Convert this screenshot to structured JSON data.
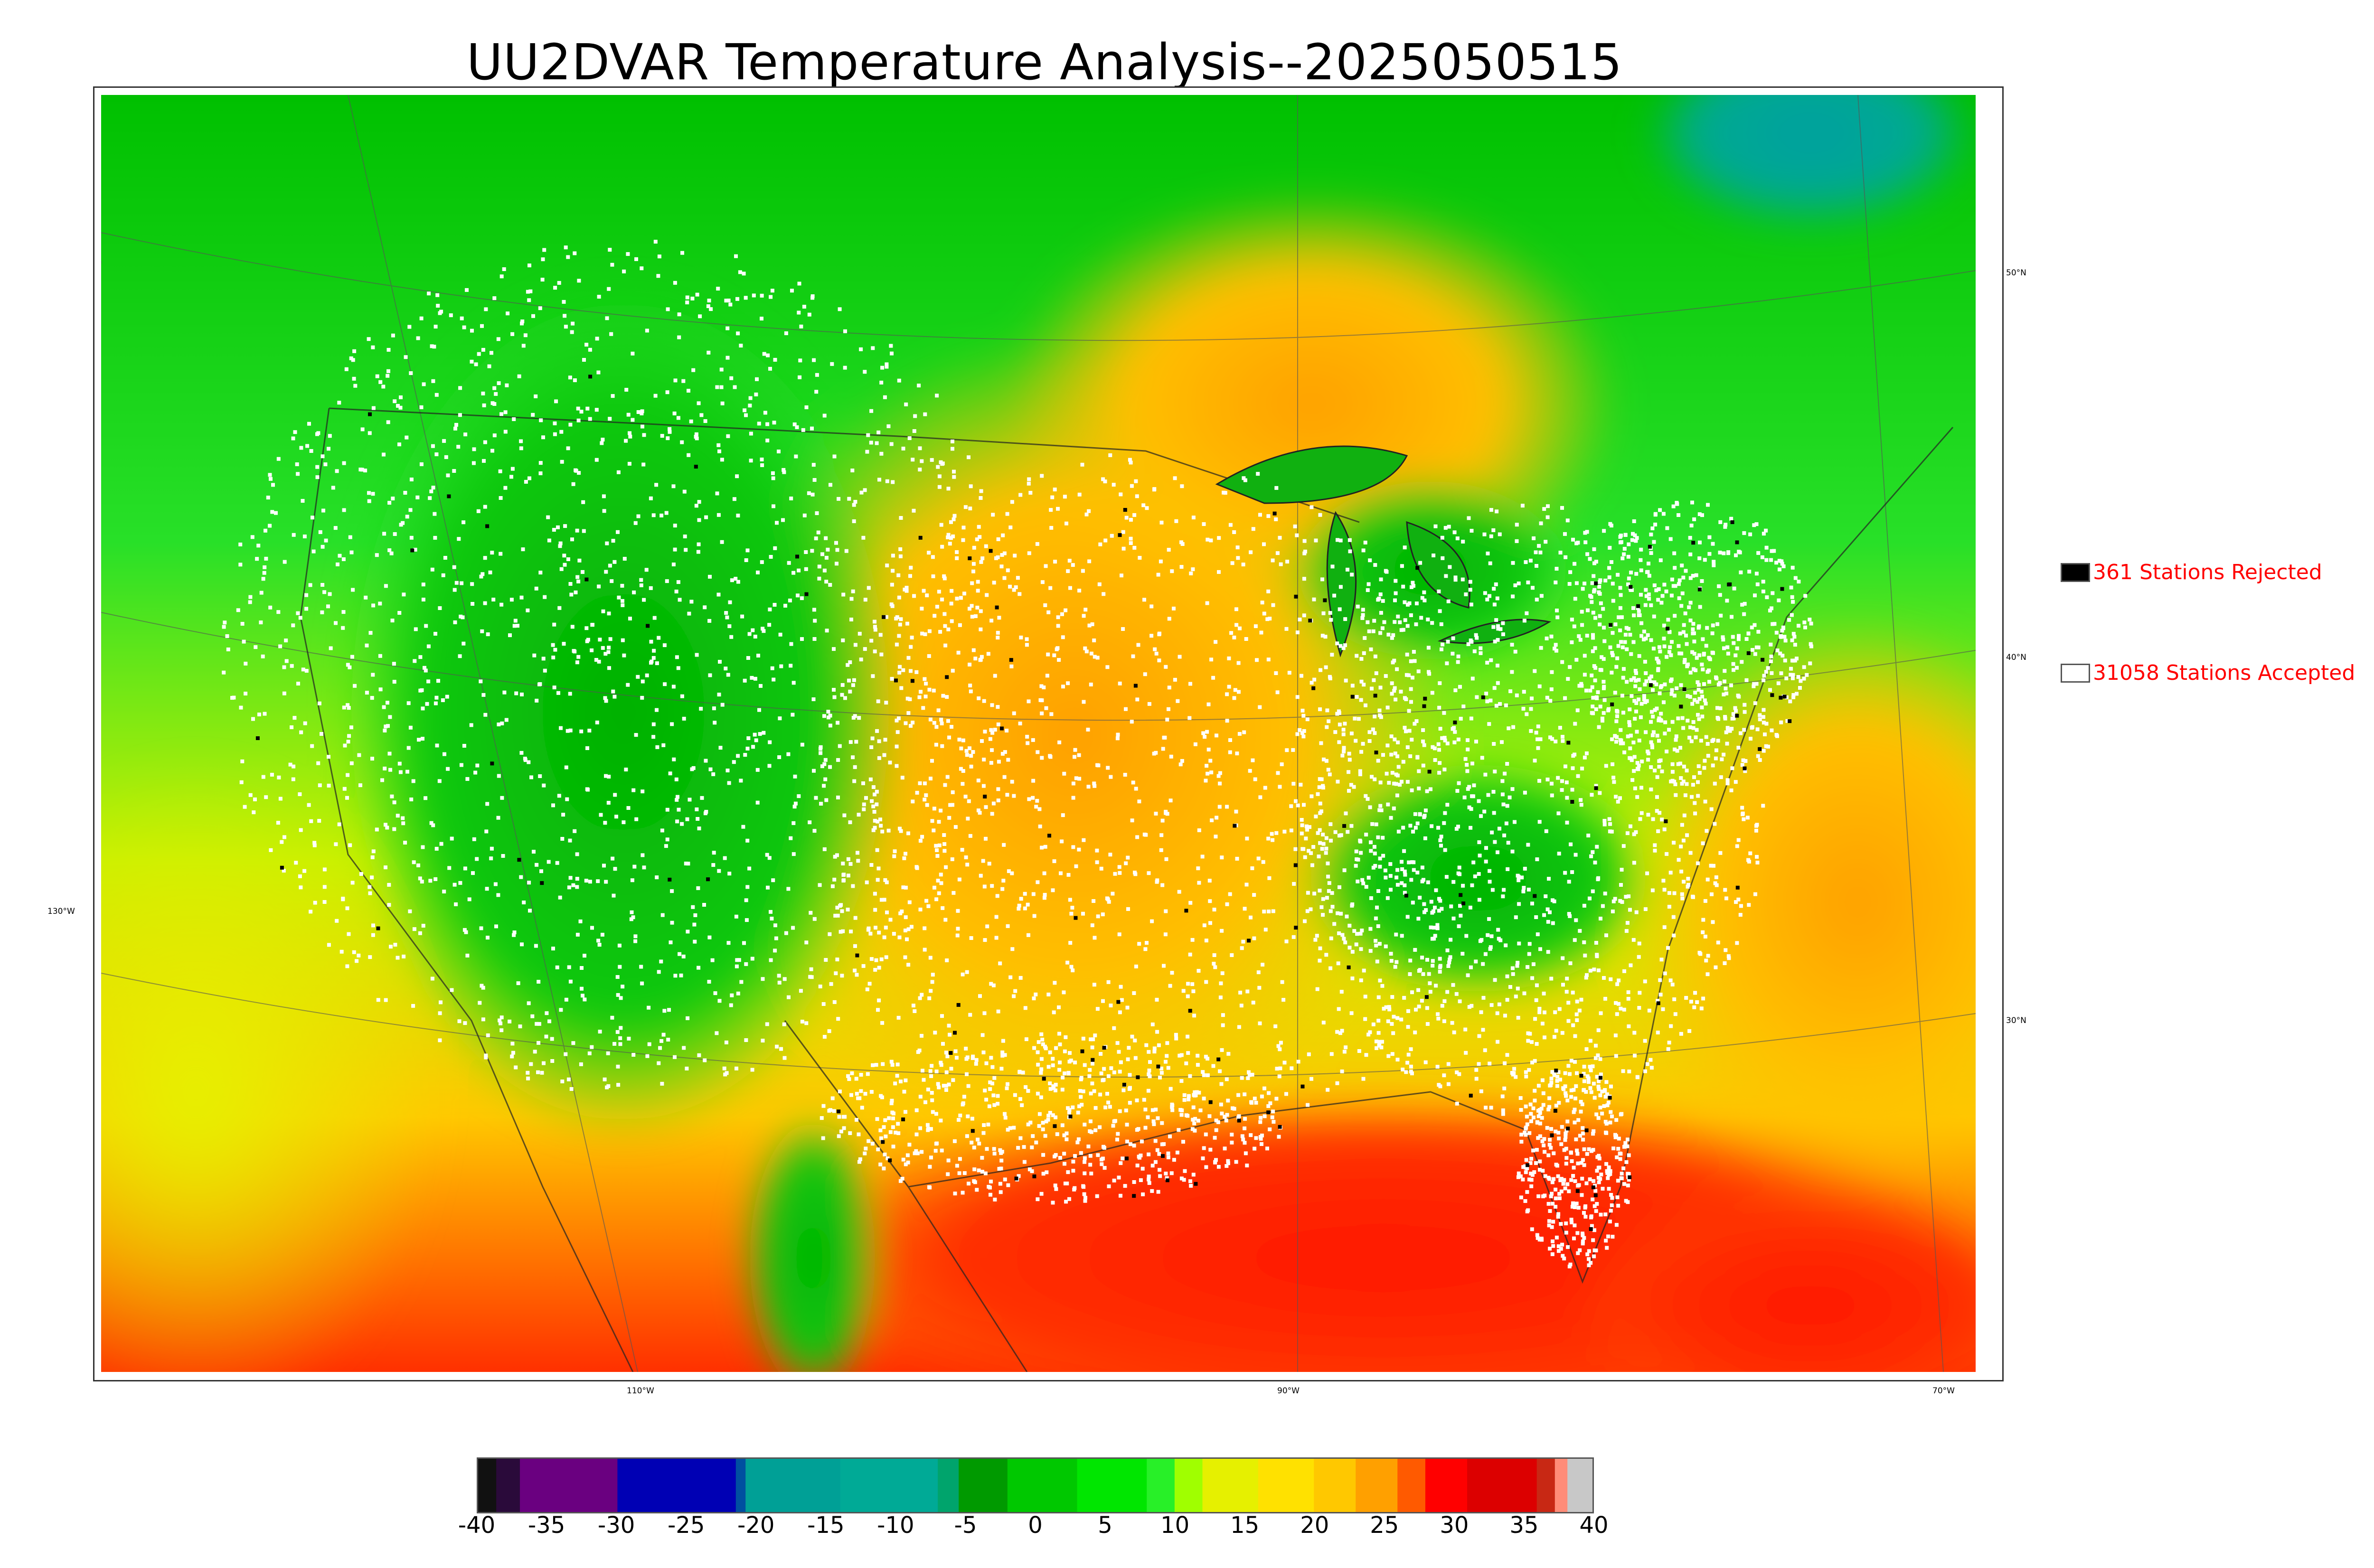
{
  "title": "UU2DVAR Temperature Analysis--2025050515",
  "map": {
    "longitude_labels": [
      {
        "text": "110°W",
        "lon": -110
      },
      {
        "text": "90°W",
        "lon": -90
      },
      {
        "text": "70°W",
        "lon": -70
      },
      {
        "text": "130°W",
        "lon": -130
      }
    ],
    "latitude_labels": [
      {
        "text": "50°N",
        "lat": 50
      },
      {
        "text": "40°N",
        "lat": 40
      },
      {
        "text": "30°N",
        "lat": 30
      }
    ],
    "field_palette": {
      "cold_north": "#00b800",
      "rockies": "#14c814",
      "plains": "#ffb000",
      "gulf": "#ff2200",
      "pacific": "#e8e800",
      "hudson": "#00a0a0",
      "station_accepted": "#ffffff",
      "station_rejected": "#000000"
    }
  },
  "legend": {
    "rejected": {
      "label": "361 Stations Rejected",
      "count": 361,
      "swatch_color": "#000000"
    },
    "accepted": {
      "label": "31058 Stations Accepted",
      "count": 31058,
      "swatch_color": "#ffffff"
    }
  },
  "colorbar": {
    "ticks": [
      "-40",
      "-35",
      "-30",
      "-25",
      "-20",
      "-15",
      "-10",
      "-5",
      "0",
      "5",
      "10",
      "15",
      "20",
      "25",
      "30",
      "35",
      "40"
    ],
    "range": [
      -40,
      40
    ],
    "segments": [
      {
        "from": -40,
        "to": -38.7,
        "color": "#111111"
      },
      {
        "from": -38.7,
        "to": -37,
        "color": "#2a0a3a"
      },
      {
        "from": -37,
        "to": -30,
        "color": "#6a0080"
      },
      {
        "from": -30,
        "to": -21.5,
        "color": "#0000b4"
      },
      {
        "from": -21.5,
        "to": -20.8,
        "color": "#0050a0"
      },
      {
        "from": -20.8,
        "to": -14,
        "color": "#00a096"
      },
      {
        "from": -14,
        "to": -7,
        "color": "#00aa96"
      },
      {
        "from": -7,
        "to": -5.5,
        "color": "#00a46c"
      },
      {
        "from": -5.5,
        "to": -2,
        "color": "#009a00"
      },
      {
        "from": -2,
        "to": 3,
        "color": "#00c800"
      },
      {
        "from": 3,
        "to": 8,
        "color": "#00e600"
      },
      {
        "from": 8,
        "to": 10,
        "color": "#28f028"
      },
      {
        "from": 10,
        "to": 12,
        "color": "#a0ff00"
      },
      {
        "from": 12,
        "to": 16,
        "color": "#e6f000"
      },
      {
        "from": 16,
        "to": 20,
        "color": "#ffe100"
      },
      {
        "from": 20,
        "to": 23,
        "color": "#ffc800"
      },
      {
        "from": 23,
        "to": 26,
        "color": "#ffa000"
      },
      {
        "from": 26,
        "to": 28,
        "color": "#ff5a00"
      },
      {
        "from": 28,
        "to": 31,
        "color": "#ff0000"
      },
      {
        "from": 31,
        "to": 36,
        "color": "#dc0000"
      },
      {
        "from": 36,
        "to": 37.3,
        "color": "#c82814"
      },
      {
        "from": 37.3,
        "to": 38.2,
        "color": "#ff8c78"
      },
      {
        "from": 38.2,
        "to": 40,
        "color": "#c8c8c8"
      }
    ]
  }
}
